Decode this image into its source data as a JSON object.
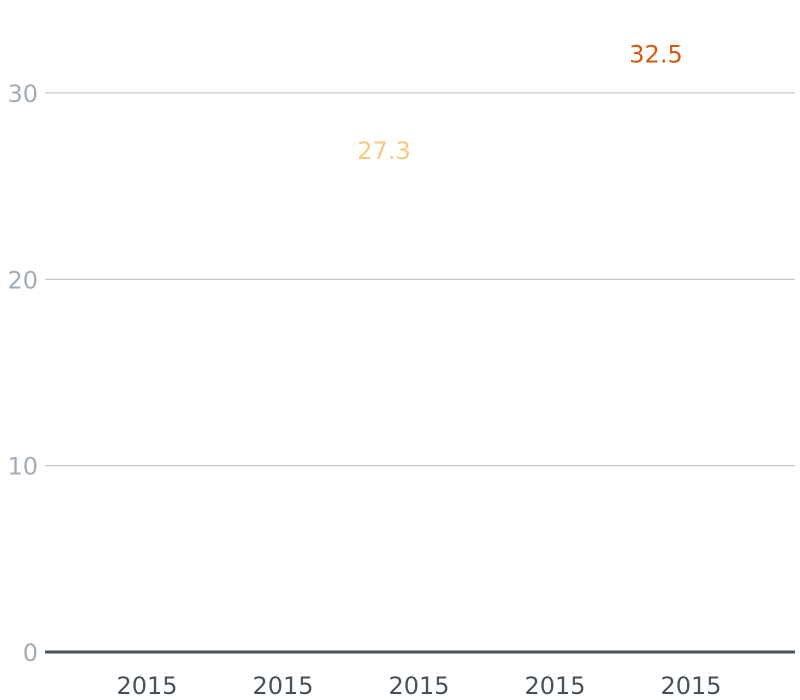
{
  "chart_data": {
    "type": "line",
    "title": "",
    "xlabel": "",
    "ylabel": "",
    "ylim": [
      0,
      33
    ],
    "grid": true,
    "y_ticks": [
      "0",
      "10",
      "20",
      "30"
    ],
    "categories": [
      "2015",
      "2015",
      "2015",
      "2015",
      "2015"
    ],
    "data_labels": [
      {
        "category_index": 1,
        "value": 27.3,
        "text": "27.3",
        "color": "#f7c97e"
      },
      {
        "category_index": 3,
        "value": 32.5,
        "text": "32.5",
        "color": "#d4580d"
      }
    ],
    "colors": {
      "grid": "#b6bcc3",
      "baseline": "#45525c",
      "y_tick_text": "#a3adb7",
      "x_tick_text": "#45525c"
    }
  }
}
